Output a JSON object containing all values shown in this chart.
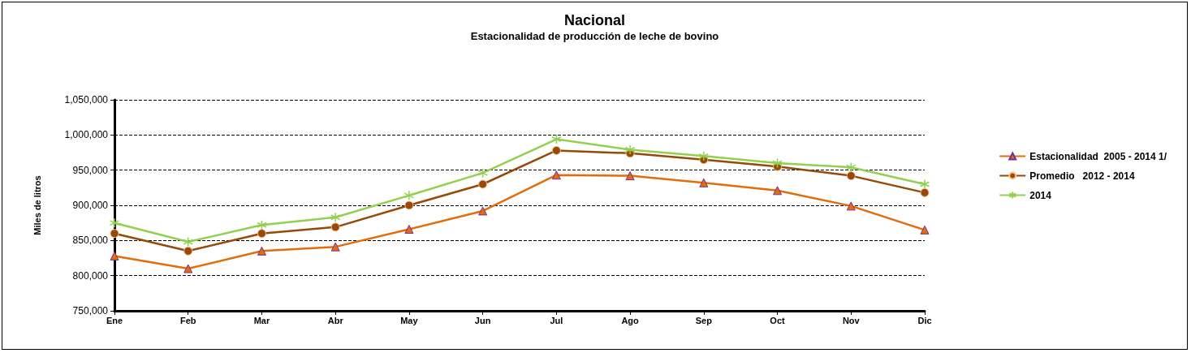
{
  "chart_data": {
    "type": "line",
    "title": "Nacional",
    "subtitle": "Estacionalidad de producción de leche de bovino",
    "ylabel": "Miles de litros",
    "categories": [
      "Ene",
      "Feb",
      "Mar",
      "Abr",
      "May",
      "Jun",
      "Jul",
      "Ago",
      "Sep",
      "Oct",
      "Nov",
      "Dic"
    ],
    "series": [
      {
        "name": "Estacionalidad  2005 - 2014 1/",
        "color": "#e46c0a",
        "marker": "triangle",
        "values": [
          828000,
          810000,
          835000,
          841000,
          866000,
          892000,
          943000,
          942000,
          932000,
          921000,
          899000,
          865000
        ]
      },
      {
        "name": "Promedio   2012 - 2014",
        "color": "#984807",
        "marker": "circle",
        "values": [
          860000,
          835000,
          860000,
          869000,
          900000,
          930000,
          978000,
          974000,
          965000,
          955000,
          942000,
          918000
        ]
      },
      {
        "name": "2014",
        "color": "#92d050",
        "marker": "cross",
        "values": [
          875000,
          848000,
          872000,
          883000,
          914000,
          946000,
          994000,
          979000,
          970000,
          960000,
          954000,
          930000
        ]
      }
    ],
    "ylim": [
      750000,
      1050000
    ],
    "yticks": [
      {
        "value": 750000,
        "label": "750,000"
      },
      {
        "value": 800000,
        "label": "800,000"
      },
      {
        "value": 850000,
        "label": "850,000"
      },
      {
        "value": 900000,
        "label": "900,000"
      },
      {
        "value": 950000,
        "label": "950,000"
      },
      {
        "value": 1000000,
        "label": "1,000,000"
      },
      {
        "value": 1050000,
        "label": "1,050,000"
      }
    ],
    "grid": "y",
    "legend": "right",
    "line_style": "solid"
  }
}
